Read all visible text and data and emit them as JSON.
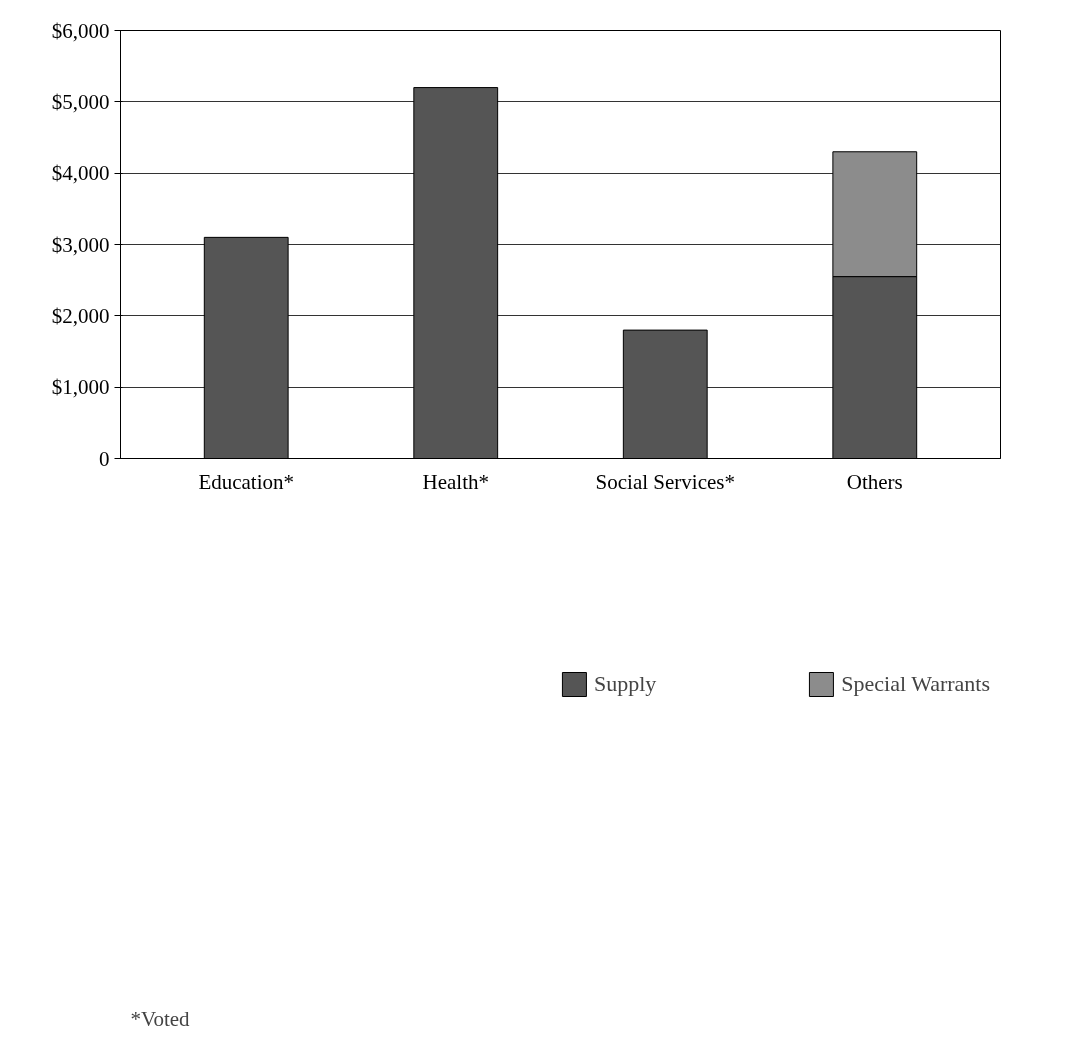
{
  "chart_data": {
    "type": "bar",
    "stacked": true,
    "categories": [
      "Education*",
      "Health*",
      "Social Services*",
      "Others"
    ],
    "series": [
      {
        "name": "Supply",
        "color": "#555555",
        "values": [
          3100,
          5200,
          1800,
          2550
        ]
      },
      {
        "name": "Special Warrants",
        "color": "#8c8c8c",
        "values": [
          null,
          null,
          null,
          1750
        ]
      }
    ],
    "ylim": [
      0,
      6000
    ],
    "yticks": [
      0,
      {
        "value": 1000,
        "label": "$1,000"
      },
      {
        "value": 2000,
        "label": "$2,000"
      },
      {
        "value": 3000,
        "label": "$3,000"
      },
      {
        "value": 4000,
        "label": "$4,000"
      },
      {
        "value": 5000,
        "label": "$5,000"
      },
      {
        "value": 6000,
        "label": "$6,000"
      }
    ],
    "grid": "y",
    "legend": "bottom",
    "annotations": [
      "*Voted"
    ]
  }
}
